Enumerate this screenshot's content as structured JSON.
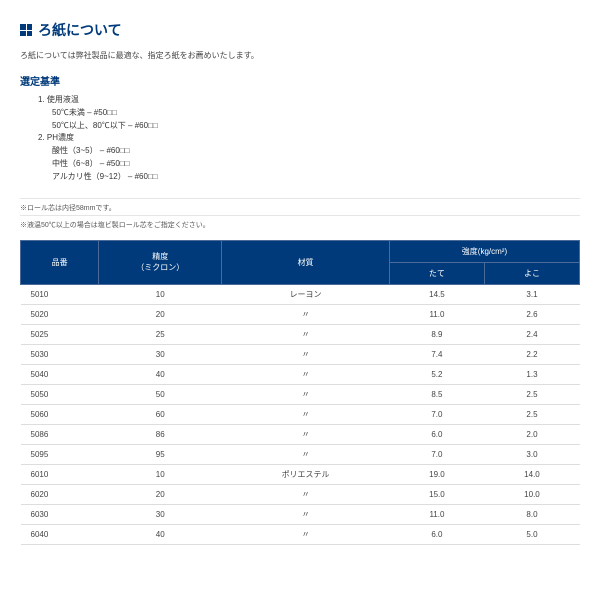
{
  "header": {
    "title": "ろ紙について",
    "intro": "ろ紙については弊社製品に最適な、指定ろ紙をお薦めいたします。"
  },
  "criteria": {
    "heading": "選定基準",
    "items": [
      {
        "num": "1. 使用液温",
        "subs": [
          "50℃未満 – #50□□",
          "50℃以上、80℃以下 – #60□□"
        ]
      },
      {
        "num": "2. PH濃度",
        "subs": [
          "酸性（3~5） – #60□□",
          "中性（6~8） – #50□□",
          "アルカリ性（9~12） – #60□□"
        ]
      }
    ]
  },
  "notes": [
    "※ロール芯は内径58mmです。",
    "※液温50℃以上の場合は塩ビ製ロール芯をご指定ください。"
  ],
  "table": {
    "headers": {
      "col1": "品番",
      "col2_line1": "精度",
      "col2_line2": "（ミクロン）",
      "col3": "材質",
      "col4_group": "強度(kg/cm²)",
      "col4a": "たて",
      "col4b": "よこ"
    },
    "rows": [
      {
        "c1": "5010",
        "c2": "10",
        "c3": "レーヨン",
        "c4": "14.5",
        "c5": "3.1"
      },
      {
        "c1": "5020",
        "c2": "20",
        "c3": "〃",
        "c4": "11.0",
        "c5": "2.6"
      },
      {
        "c1": "5025",
        "c2": "25",
        "c3": "〃",
        "c4": "8.9",
        "c5": "2.4"
      },
      {
        "c1": "5030",
        "c2": "30",
        "c3": "〃",
        "c4": "7.4",
        "c5": "2.2"
      },
      {
        "c1": "5040",
        "c2": "40",
        "c3": "〃",
        "c4": "5.2",
        "c5": "1.3"
      },
      {
        "c1": "5050",
        "c2": "50",
        "c3": "〃",
        "c4": "8.5",
        "c5": "2.5"
      },
      {
        "c1": "5060",
        "c2": "60",
        "c3": "〃",
        "c4": "7.0",
        "c5": "2.5"
      },
      {
        "c1": "5086",
        "c2": "86",
        "c3": "〃",
        "c4": "6.0",
        "c5": "2.0"
      },
      {
        "c1": "5095",
        "c2": "95",
        "c3": "〃",
        "c4": "7.0",
        "c5": "3.0"
      },
      {
        "c1": "6010",
        "c2": "10",
        "c3": "ポリエステル",
        "c4": "19.0",
        "c5": "14.0"
      },
      {
        "c1": "6020",
        "c2": "20",
        "c3": "〃",
        "c4": "15.0",
        "c5": "10.0"
      },
      {
        "c1": "6030",
        "c2": "30",
        "c3": "〃",
        "c4": "11.0",
        "c5": "8.0"
      },
      {
        "c1": "6040",
        "c2": "40",
        "c3": "〃",
        "c4": "6.0",
        "c5": "5.0"
      }
    ]
  }
}
